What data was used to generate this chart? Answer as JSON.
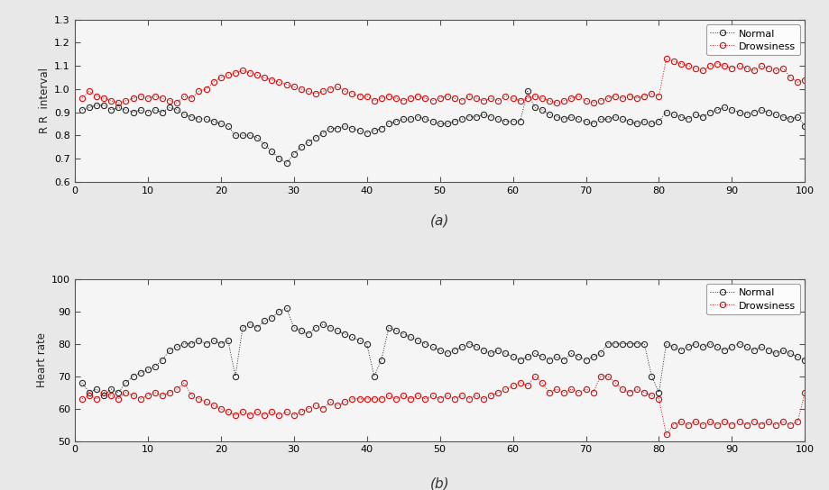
{
  "title_a": "(a)",
  "title_b": "(b)",
  "ylabel_a": "R R  interval",
  "ylabel_b": "Heart rate",
  "xlim": [
    0,
    100
  ],
  "ylim_a": [
    0.6,
    1.3
  ],
  "ylim_b": [
    50,
    100
  ],
  "yticks_a": [
    0.6,
    0.7,
    0.8,
    0.9,
    1.0,
    1.1,
    1.2,
    1.3
  ],
  "yticks_b": [
    50,
    60,
    70,
    80,
    90,
    100
  ],
  "xticks": [
    0,
    10,
    20,
    30,
    40,
    50,
    60,
    70,
    80,
    90,
    100
  ],
  "normal_color": "#2a2a2a",
  "drowsy_color": "#cc1111",
  "legend_normal": "Normal",
  "legend_drowsy": "Drowsiness",
  "fig_bg": "#e8e8e8",
  "ax_bg": "#f5f5f5",
  "normal_rr": [
    0.91,
    0.92,
    0.93,
    0.93,
    0.91,
    0.92,
    0.91,
    0.9,
    0.91,
    0.9,
    0.91,
    0.9,
    0.92,
    0.91,
    0.89,
    0.88,
    0.87,
    0.87,
    0.86,
    0.85,
    0.84,
    0.8,
    0.8,
    0.8,
    0.79,
    0.76,
    0.73,
    0.7,
    0.68,
    0.72,
    0.75,
    0.77,
    0.79,
    0.81,
    0.83,
    0.83,
    0.84,
    0.83,
    0.82,
    0.81,
    0.82,
    0.83,
    0.85,
    0.86,
    0.87,
    0.87,
    0.88,
    0.87,
    0.86,
    0.85,
    0.85,
    0.86,
    0.87,
    0.88,
    0.88,
    0.89,
    0.88,
    0.87,
    0.86,
    0.86,
    0.86,
    0.99,
    0.92,
    0.91,
    0.89,
    0.88,
    0.87,
    0.88,
    0.87,
    0.86,
    0.85,
    0.87,
    0.87,
    0.88,
    0.87,
    0.86,
    0.85,
    0.86,
    0.85,
    0.86,
    0.9,
    0.89,
    0.88,
    0.87,
    0.89,
    0.88,
    0.9,
    0.91,
    0.92,
    0.91,
    0.9,
    0.89,
    0.9,
    0.91,
    0.9,
    0.89,
    0.88,
    0.87,
    0.88,
    0.84
  ],
  "drowsy_rr": [
    0.96,
    0.99,
    0.97,
    0.96,
    0.95,
    0.94,
    0.95,
    0.96,
    0.97,
    0.96,
    0.97,
    0.96,
    0.95,
    0.94,
    0.97,
    0.96,
    0.99,
    1.0,
    1.03,
    1.05,
    1.06,
    1.07,
    1.08,
    1.07,
    1.06,
    1.05,
    1.04,
    1.03,
    1.02,
    1.01,
    1.0,
    0.99,
    0.98,
    0.99,
    1.0,
    1.01,
    0.99,
    0.98,
    0.97,
    0.97,
    0.95,
    0.96,
    0.97,
    0.96,
    0.95,
    0.96,
    0.97,
    0.96,
    0.95,
    0.96,
    0.97,
    0.96,
    0.95,
    0.97,
    0.96,
    0.95,
    0.96,
    0.95,
    0.97,
    0.96,
    0.95,
    0.96,
    0.97,
    0.96,
    0.95,
    0.94,
    0.95,
    0.96,
    0.97,
    0.95,
    0.94,
    0.95,
    0.96,
    0.97,
    0.96,
    0.97,
    0.96,
    0.97,
    0.98,
    0.97,
    1.13,
    1.12,
    1.11,
    1.1,
    1.09,
    1.08,
    1.1,
    1.11,
    1.1,
    1.09,
    1.1,
    1.09,
    1.08,
    1.1,
    1.09,
    1.08,
    1.09,
    1.05,
    1.03,
    1.04
  ],
  "normal_hr": [
    68,
    65,
    66,
    64,
    66,
    65,
    68,
    70,
    71,
    72,
    73,
    75,
    78,
    79,
    80,
    80,
    81,
    80,
    81,
    80,
    81,
    70,
    85,
    86,
    85,
    87,
    88,
    90,
    91,
    85,
    84,
    83,
    85,
    86,
    85,
    84,
    83,
    82,
    81,
    80,
    70,
    75,
    85,
    84,
    83,
    82,
    81,
    80,
    79,
    78,
    77,
    78,
    79,
    80,
    79,
    78,
    77,
    78,
    77,
    76,
    75,
    76,
    77,
    76,
    75,
    76,
    75,
    77,
    76,
    75,
    76,
    77,
    80,
    80,
    80,
    80,
    80,
    80,
    70,
    65,
    80,
    79,
    78,
    79,
    80,
    79,
    80,
    79,
    78,
    79,
    80,
    79,
    78,
    79,
    78,
    77,
    78,
    77,
    76,
    75
  ],
  "drowsy_hr": [
    63,
    64,
    63,
    65,
    64,
    63,
    65,
    64,
    63,
    64,
    65,
    64,
    65,
    66,
    68,
    64,
    63,
    62,
    61,
    60,
    59,
    58,
    59,
    58,
    59,
    58,
    59,
    58,
    59,
    58,
    59,
    60,
    61,
    60,
    62,
    61,
    62,
    63,
    63,
    63,
    63,
    63,
    64,
    63,
    64,
    63,
    64,
    63,
    64,
    63,
    64,
    63,
    64,
    63,
    64,
    63,
    64,
    65,
    66,
    67,
    68,
    67,
    70,
    68,
    65,
    66,
    65,
    66,
    65,
    66,
    65,
    70,
    70,
    68,
    66,
    65,
    66,
    65,
    64,
    63,
    52,
    55,
    56,
    55,
    56,
    55,
    56,
    55,
    56,
    55,
    56,
    55,
    56,
    55,
    56,
    55,
    56,
    55,
    56,
    65
  ]
}
